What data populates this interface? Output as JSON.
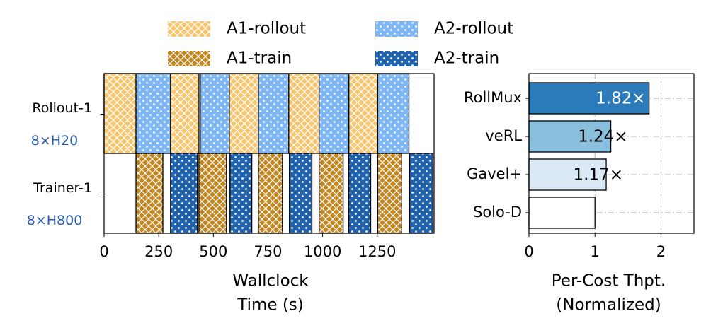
{
  "chart_data": [
    {
      "type": "gantt",
      "categories": [
        "Rollout-1",
        "Trainer-1"
      ],
      "category_sublabels": [
        "8×H20",
        "8×H800"
      ],
      "series": [
        {
          "name": "A1-rollout",
          "color": "#f6c56e",
          "hatch": "crosshatch",
          "row": 0,
          "start": [
            0,
            304,
            573,
            845,
            1120
          ],
          "end": [
            146,
            434,
            706,
            984,
            1252
          ]
        },
        {
          "name": "A1-train",
          "color": "#c4861f",
          "hatch": "crosshatch",
          "row": 1,
          "start": [
            146,
            434,
            706,
            984,
            1252
          ],
          "end": [
            269,
            560,
            816,
            1094,
            1362
          ]
        },
        {
          "name": "A2-rollout",
          "color": "#7fb6f4",
          "hatch": "dots",
          "row": 0,
          "start": [
            146,
            440,
            706,
            984,
            1252
          ],
          "end": [
            304,
            573,
            845,
            1120,
            1395
          ]
        },
        {
          "name": "A2-train",
          "color": "#2162ad",
          "hatch": "dots",
          "row": 1,
          "start": [
            304,
            576,
            848,
            1120,
            1398
          ],
          "end": [
            427,
            676,
            951,
            1220,
            1505
          ]
        }
      ],
      "xlim": [
        0,
        1510
      ],
      "xticks": [
        0,
        250,
        500,
        750,
        1000,
        1250
      ],
      "xlabel": [
        "Wallclock",
        "Time (s)"
      ],
      "legend": "top",
      "legend_columns": 2
    },
    {
      "type": "barh",
      "categories": [
        "RollMux",
        "veRL",
        "Gavel+",
        "Solo-D"
      ],
      "values": [
        1.82,
        1.24,
        1.17,
        1
      ],
      "value_labels": [
        "1.82×",
        "1.24×",
        "1.17×",
        null
      ],
      "colors": [
        "#2b7bba",
        "#89bedc",
        "#dbe9f6",
        "#ffffff"
      ],
      "xlim": [
        0,
        2.5
      ],
      "xticks": [
        0,
        1,
        2
      ],
      "xlabel": [
        "Per-Cost Thpt.",
        "(Normalized)"
      ],
      "grid": true
    }
  ]
}
